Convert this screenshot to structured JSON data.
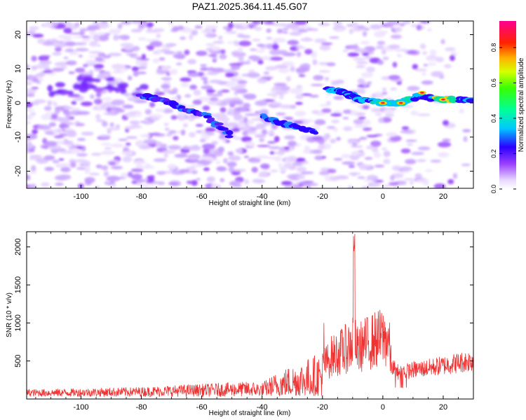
{
  "page_title": "PAZ1.2025.364.11.45.G07",
  "chart_data": [
    {
      "type": "heatmap",
      "title": "PAZ1.2025.364.11.45.G07",
      "xlabel": "Height of straight line (km)",
      "ylabel": "Frequency (Hz)",
      "xlim": [
        -118,
        30
      ],
      "ylim": [
        -25,
        24
      ],
      "xticks": [
        -100,
        -80,
        -60,
        -40,
        -20,
        0,
        20
      ],
      "yticks": [
        -20,
        -10,
        0,
        10,
        20
      ],
      "colorbar": {
        "label": "Normalized spectral amplitude",
        "range": [
          0,
          0.95
        ],
        "ticks": [
          0.0,
          0.2,
          0.4,
          0.6,
          0.8
        ]
      },
      "features": [
        {
          "name": "main trace segment A",
          "points": [
            [
              -80,
              2
            ],
            [
              -72,
              1
            ],
            [
              -66,
              -2
            ],
            [
              -58,
              -4
            ],
            [
              -50,
              -10
            ]
          ]
        },
        {
          "name": "main trace segment B",
          "points": [
            [
              -40,
              -4
            ],
            [
              -34,
              -6
            ],
            [
              -28,
              -7
            ],
            [
              -22,
              -9
            ]
          ]
        },
        {
          "name": "main trace segment C",
          "points": [
            [
              -18,
              4
            ],
            [
              -12,
              3
            ],
            [
              -8,
              1
            ],
            [
              0,
              0
            ],
            [
              6,
              0
            ],
            [
              12,
              2
            ],
            [
              20,
              1
            ],
            [
              30,
              1
            ]
          ]
        },
        {
          "name": "upper band",
          "points": [
            [
              -105,
              4
            ],
            [
              -95,
              6
            ],
            [
              -85,
              4
            ]
          ]
        }
      ]
    },
    {
      "type": "line",
      "xlabel": "Height of straight line (km)",
      "ylabel": "SNR (10 * v/v)",
      "xlim": [
        -118,
        30
      ],
      "ylim": [
        0,
        2200
      ],
      "xticks": [
        -100,
        -80,
        -60,
        -40,
        -20,
        0,
        20
      ],
      "yticks": [
        500,
        1000,
        1500,
        2000
      ],
      "series": [
        {
          "name": "SNR",
          "color": "#ee3333",
          "envelope": {
            "x": [
              -118,
              -100,
              -80,
              -60,
              -45,
              -40,
              -35,
              -30,
              -25,
              -20,
              -17,
              -15,
              -12,
              -10,
              -9.5,
              -9,
              -7,
              -5,
              -3,
              0,
              2,
              3,
              5,
              8,
              10,
              15,
              20,
              25,
              30
            ],
            "y": [
              100,
              110,
              130,
              170,
              200,
              180,
              320,
              420,
              500,
              600,
              800,
              850,
              950,
              1050,
              2050,
              900,
              1000,
              1050,
              1100,
              1150,
              1100,
              500,
              420,
              430,
              450,
              480,
              520,
              560,
              600
            ]
          }
        }
      ]
    }
  ]
}
